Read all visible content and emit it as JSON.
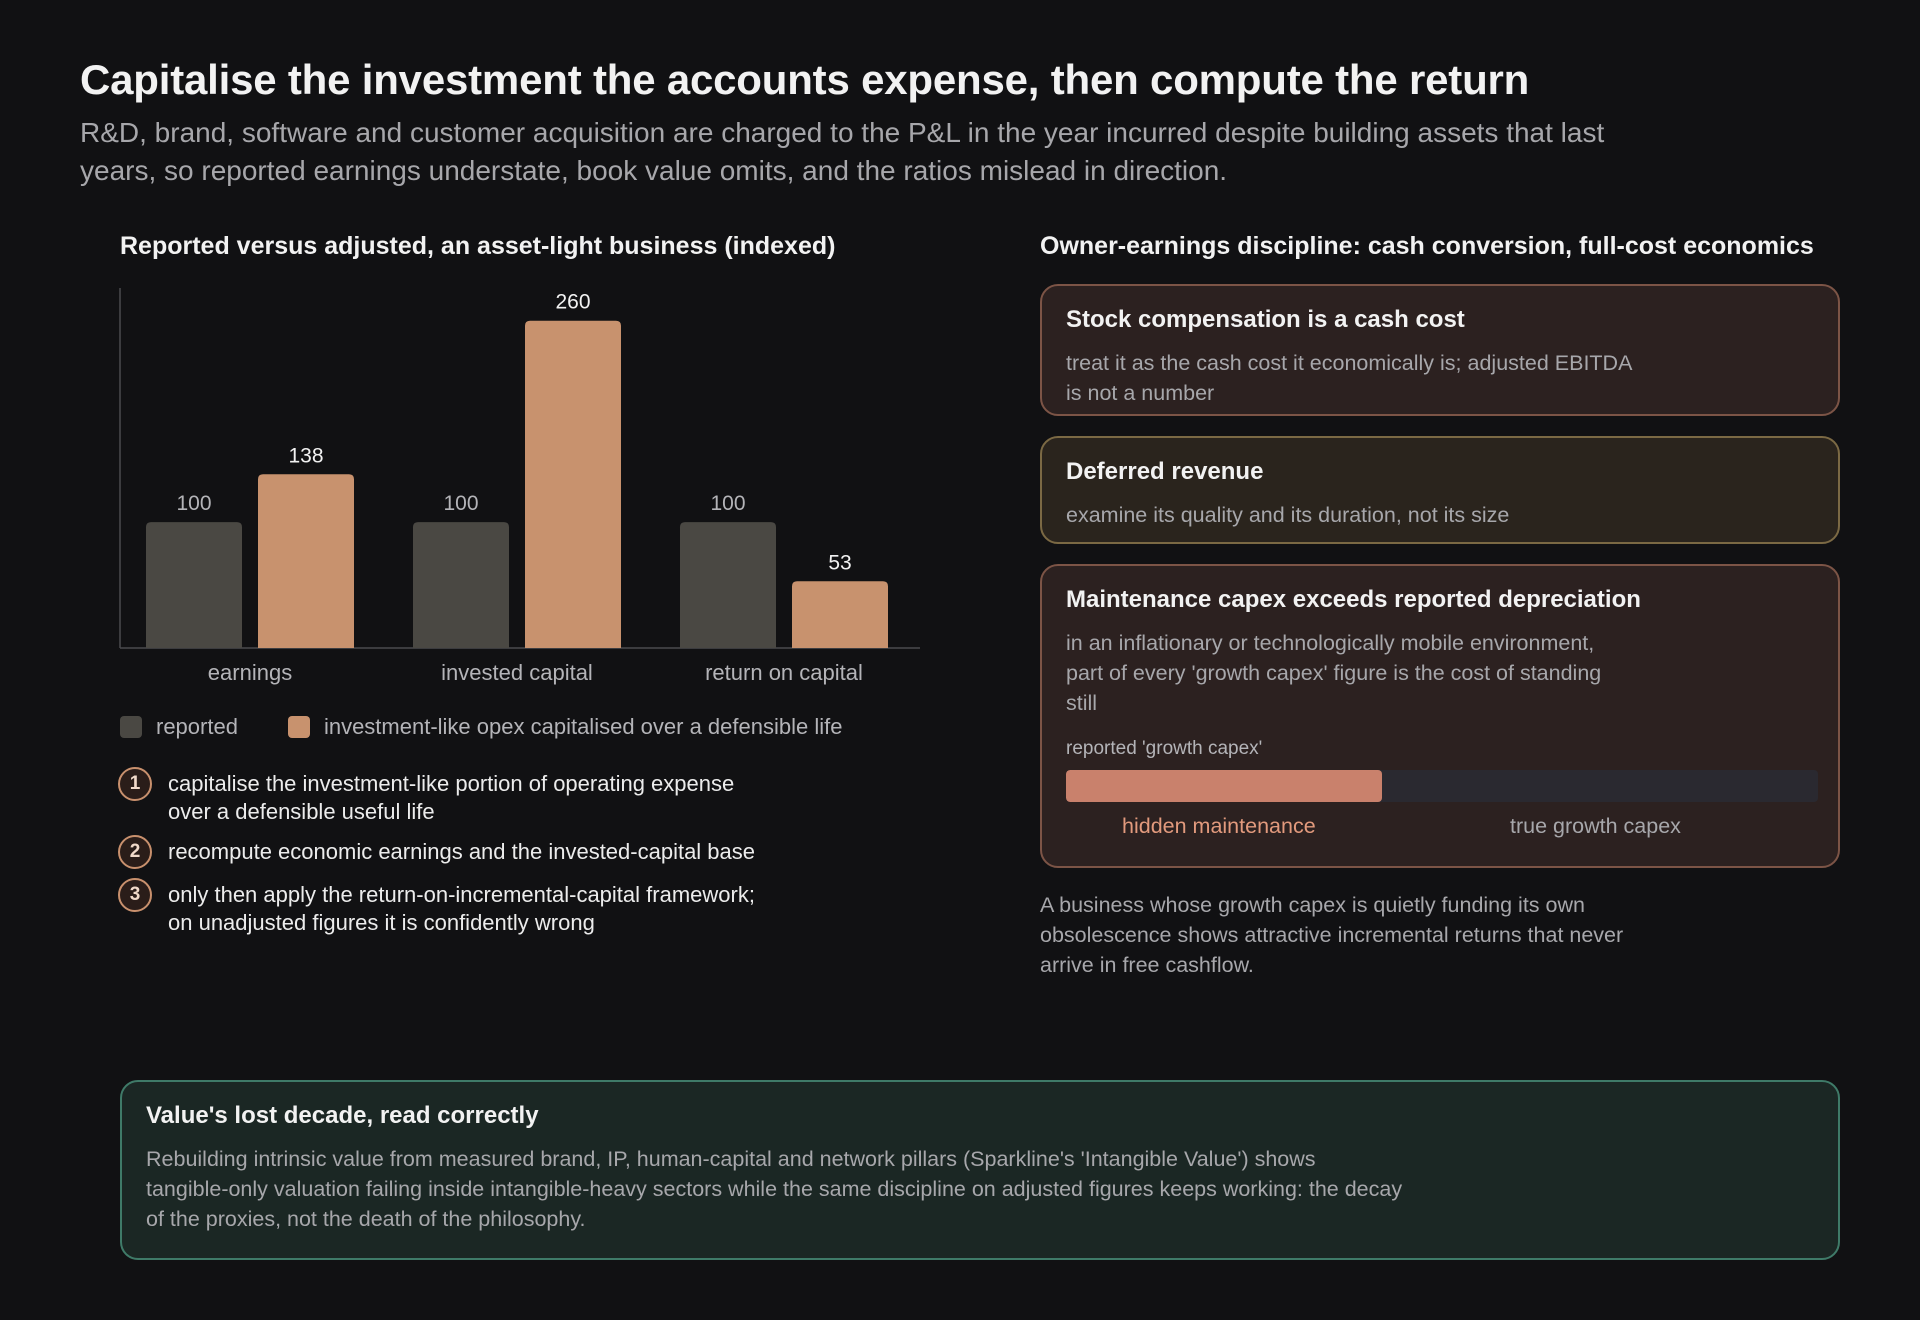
{
  "header": {
    "title": "Capitalise the investment the accounts expense, then compute the return",
    "subtitle": "R&D, brand, software and customer acquisition are charged to the P&L in the year incurred despite building assets that last years, so reported earnings understate, book value omits, and the ratios mislead in direction."
  },
  "colors": {
    "background": "#111113",
    "reported": "#4a4843",
    "adjusted": "#c8926e",
    "hidden_maintenance": "#c9816c",
    "axis": "#4a4a4e"
  },
  "chart_data": {
    "type": "bar",
    "title": "Reported versus adjusted, an asset-light business (indexed)",
    "categories": [
      "earnings",
      "invested capital",
      "return on capital"
    ],
    "series": [
      {
        "name": "reported",
        "values": [
          100,
          100,
          100
        ]
      },
      {
        "name": "investment-like opex capitalised over a defensible life",
        "values": [
          138,
          260,
          53
        ]
      }
    ],
    "ylim": [
      0,
      286
    ],
    "grid": false,
    "legend": "bottom-left",
    "xlabel": "",
    "ylabel": ""
  },
  "steps": [
    {
      "num": "1",
      "text": "capitalise the investment-like portion of operating expense\nover a defensible useful life"
    },
    {
      "num": "2",
      "text": "recompute economic earnings and the invested-capital base"
    },
    {
      "num": "3",
      "text": "only then apply the return-on-incremental-capital framework;\non unadjusted figures it is confidently wrong"
    }
  ],
  "right_panel": {
    "title": "Owner-earnings discipline: cash conversion, full-cost economics",
    "cards": [
      {
        "title": "Stock compensation is a cash cost",
        "body": "treat it as the cash cost it economically is; adjusted EBITDA\nis not a number"
      },
      {
        "title": "Deferred revenue",
        "body": "examine its quality and its duration, not its size"
      },
      {
        "title": "Maintenance capex exceeds reported depreciation",
        "body": "in an inflationary or technologically mobile environment,\npart of every 'growth capex' figure is the cost of standing\nstill"
      }
    ],
    "capex_bar": {
      "label": "reported 'growth capex'",
      "hidden_share": 0.42,
      "hidden_label": "hidden maintenance",
      "true_label": "true growth capex"
    },
    "note": "A business whose growth capex is quietly funding its own\nobsolescence shows attractive incremental returns that never\narrive in free cashflow."
  },
  "footer_card": {
    "title": "Value's lost decade, read correctly",
    "body": "Rebuilding intrinsic value from measured brand, IP, human-capital and network pillars (Sparkline's 'Intangible Value') shows\ntangible-only valuation failing inside intangible-heavy sectors while the same discipline on adjusted figures keeps working: the decay\nof the proxies, not the death of the philosophy."
  }
}
